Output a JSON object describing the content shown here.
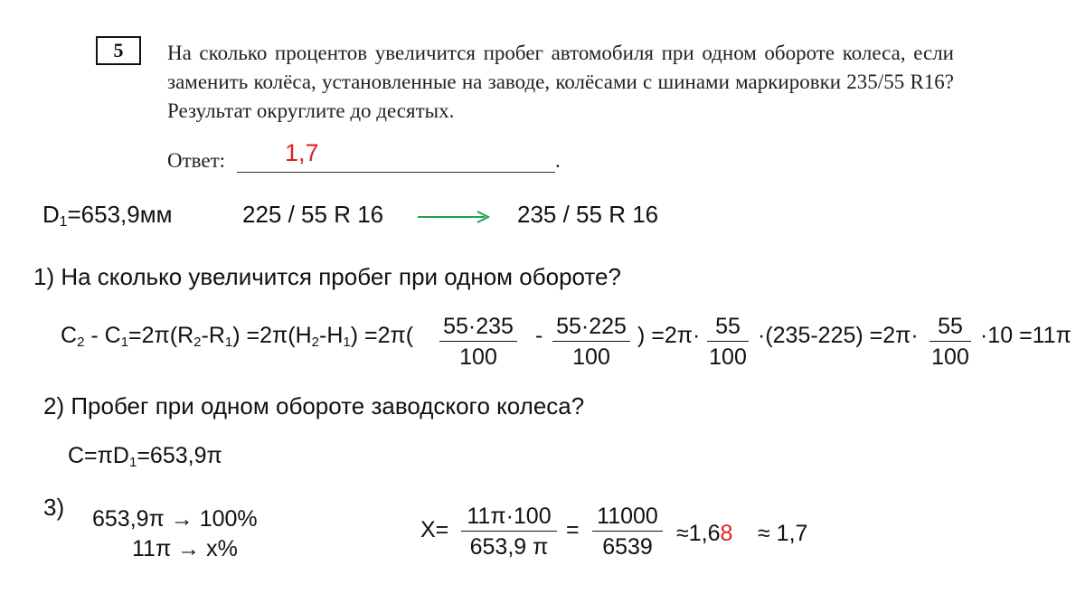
{
  "task": {
    "number": "5",
    "question": "На сколько процентов увеличится пробег автомобиля при одном обороте колеса, если заменить колёса, установленные на заводе, колёсами с шинами маркировки 235/55 R16? Результат округлите до десятых.",
    "answer_label": "Ответ:",
    "answer_value": "1,7",
    "answer_end": "."
  },
  "given": {
    "diameter_label": "D",
    "diameter_sub": "1",
    "diameter_value": "=653,9мм",
    "tire_from": "225 / 55 R 16",
    "tire_to": "235 / 55 R 16",
    "arrow_color": "#22a34a"
  },
  "step1": {
    "title": "1) На сколько увеличится пробег при одном обороте?",
    "p1": "C",
    "p1s": "2",
    "p2": " - C",
    "p2s": "1",
    "p3": "=2π(R",
    "p3s": "2",
    "p4": "-R",
    "p4s": "1",
    "p5": ")  =2π(H",
    "p5s": "2",
    "p6": "-H",
    "p6s": "1",
    "p7": ")  =2π(",
    "frac1_num": "55·235",
    "frac1_den": "100",
    "minus": "-",
    "frac2_num": "55·225",
    "frac2_den": "100",
    "mid1": ")  =2π·",
    "frac3_num": "55",
    "frac3_den": "100",
    "mid2": "·(235-225) =2π·",
    "frac4_num": "55",
    "frac4_den": "100",
    "tail": "·10 =11π"
  },
  "step2": {
    "title": "2) Пробег при одном обороте заводского колеса?",
    "f1": "C=πD",
    "f1s": "1",
    "f2": "=653,9π"
  },
  "step3": {
    "label": "3)",
    "line1": "653,9π → 100%",
    "line2": "11π → x%",
    "x_label": "X=",
    "frac1_num": "11π·100",
    "frac1_den": "653,9 π",
    "equals": "=",
    "frac2_num": "11000",
    "frac2_den": "6539",
    "approx1_a": "≈1,6",
    "approx1_b": "8",
    "approx2": "≈ 1,7"
  }
}
